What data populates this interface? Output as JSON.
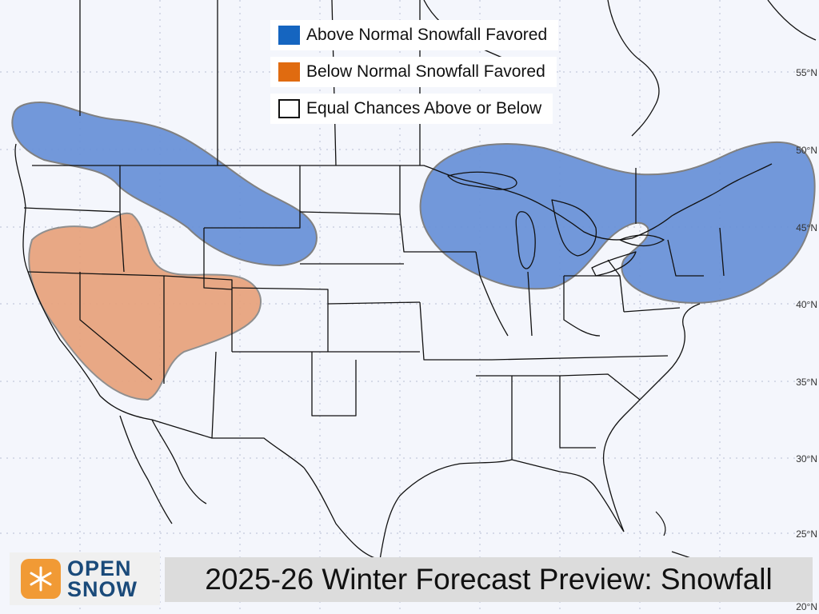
{
  "legend": [
    {
      "label": "Above Normal Snowfall Favored",
      "color": "#1565c0"
    },
    {
      "label": "Below Normal Snowfall Favored",
      "color": "#e06b10"
    },
    {
      "label": "Equal Chances Above or Below",
      "color": "#ffffff"
    }
  ],
  "latitude_labels": [
    "55°N",
    "50°N",
    "45°N",
    "40°N",
    "35°N",
    "30°N",
    "25°N",
    "20°N"
  ],
  "brand": {
    "line1": "OPEN",
    "line2": "SNOW"
  },
  "title": "2025-26 Winter Forecast Preview: Snowfall",
  "colors": {
    "above_fill": "#6c93d9",
    "below_fill": "#e8a47f",
    "background": "#f4f6fc"
  }
}
